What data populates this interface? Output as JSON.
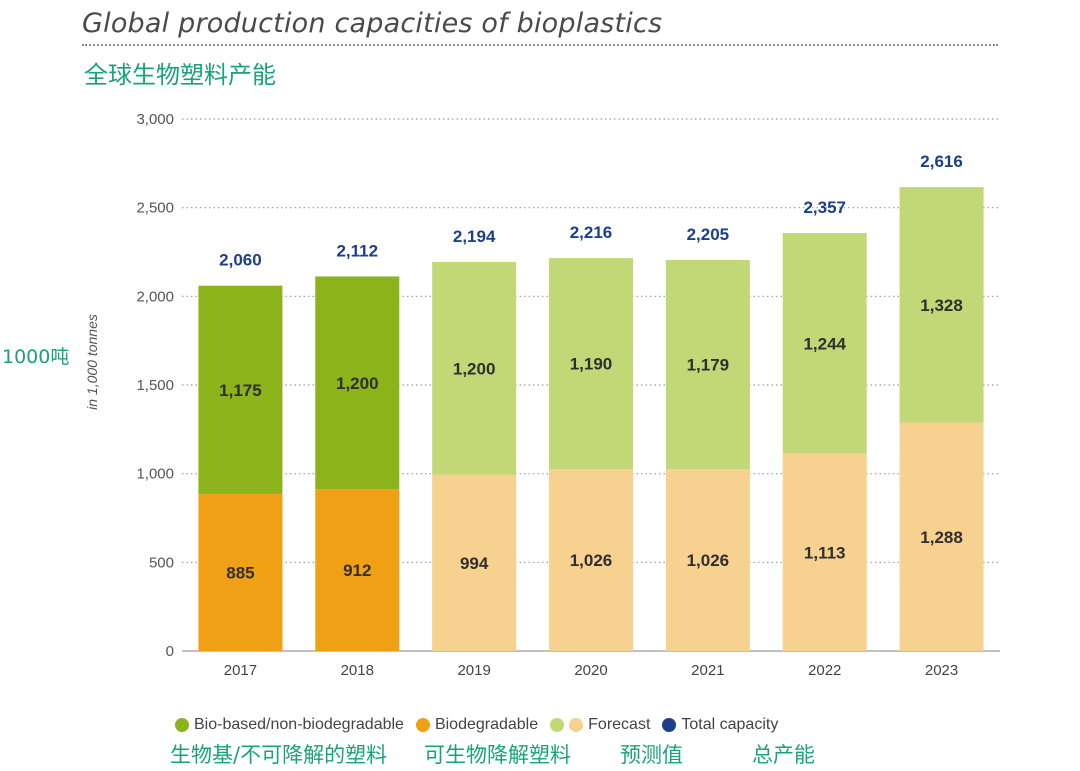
{
  "header": {
    "title": "Global production capacities of bioplastics",
    "subtitle_cn": "全球生物塑料产能",
    "unit_cn": "1000吨"
  },
  "legend": {
    "items": [
      {
        "label": "Bio-based/non-biodegradable",
        "color": "#8cb319"
      },
      {
        "label": "Biodegradable",
        "color": "#f0a014"
      },
      {
        "label": "Forecast",
        "colors": [
          "#c2d877",
          "#f6d18f"
        ]
      },
      {
        "label": "Total capacity",
        "color": "#1c3f8a"
      }
    ],
    "cn_labels": [
      "生物基/不可降解的塑料",
      "可生物降解塑料",
      "预测值",
      "总产能"
    ]
  },
  "chart_data": {
    "type": "bar",
    "stacked": true,
    "categories": [
      "2017",
      "2018",
      "2019",
      "2020",
      "2021",
      "2022",
      "2023"
    ],
    "forecast": [
      false,
      false,
      true,
      true,
      true,
      true,
      true
    ],
    "series": [
      {
        "name": "Biodegradable",
        "values": [
          885,
          912,
          994,
          1026,
          1026,
          1113,
          1288
        ],
        "color": "#f0a014",
        "forecast_color": "#f6d18f"
      },
      {
        "name": "Bio-based/non-biodegradable",
        "values": [
          1175,
          1200,
          1200,
          1190,
          1179,
          1244,
          1328
        ],
        "color": "#8cb319",
        "forecast_color": "#c2d877"
      }
    ],
    "totals": [
      2060,
      2112,
      2194,
      2216,
      2205,
      2357,
      2616
    ],
    "title": "Global production capacities of bioplastics",
    "ylabel": "in 1,000 tonnes",
    "xlabel": "",
    "ylim": [
      0,
      3000
    ],
    "yticks": [
      0,
      500,
      1000,
      1500,
      2000,
      2500,
      3000
    ],
    "grid": true,
    "legend_position": "bottom"
  }
}
